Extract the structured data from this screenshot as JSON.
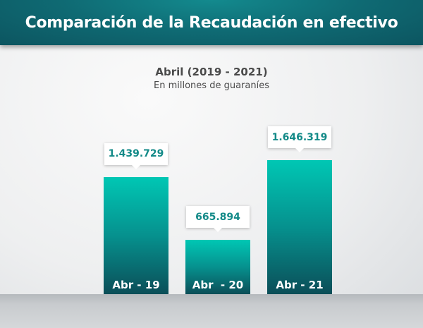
{
  "header": {
    "title": "Comparación de la Recaudación en efectivo"
  },
  "chart_data": {
    "type": "bar",
    "title": "Abril (2019 - 2021)",
    "subtitle": "En millones de guaraníes",
    "categories": [
      "Abr - 19",
      "Abr  - 20",
      "Abr - 21"
    ],
    "values": [
      1439729,
      665894,
      1646319
    ],
    "data_labels": [
      "1.439.729",
      "665.894",
      "1.646.319"
    ],
    "xlabel": "",
    "ylabel": "",
    "ylim": [
      0,
      1646319
    ],
    "grid": false,
    "colors": {
      "bar_top": "#00c7b4",
      "bar_bottom": "#0b4e58",
      "label": "#138a88"
    }
  }
}
